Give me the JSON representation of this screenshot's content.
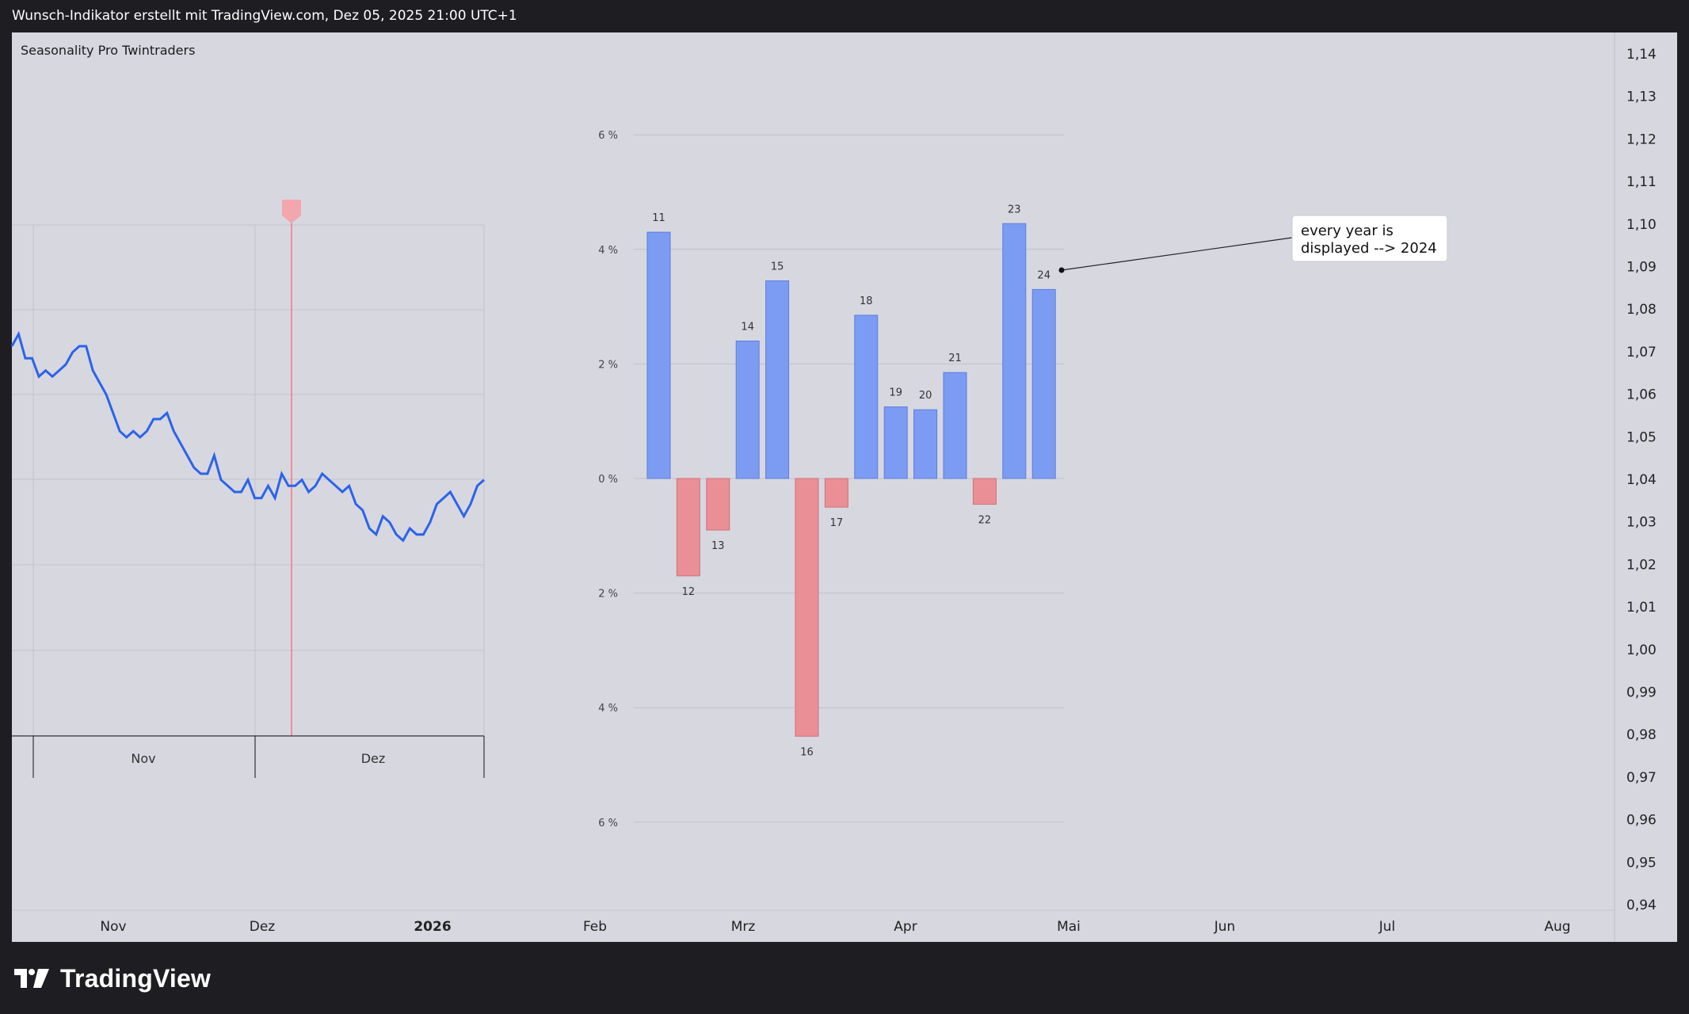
{
  "header": {
    "snapshot_text": "Wunsch-Indikator erstellt mit TradingView.com, Dez 05, 2025 21:00 UTC+1"
  },
  "indicator": {
    "title": "Seasonality Pro Twintraders"
  },
  "price_axis": {
    "labels": [
      "1,14",
      "1,13",
      "1,12",
      "1,11",
      "1,10",
      "1,09",
      "1,08",
      "1,07",
      "1,06",
      "1,05",
      "1,04",
      "1,03",
      "1,02",
      "1,01",
      "1,00",
      "0,99",
      "0,98",
      "0,97",
      "0,96",
      "0,95",
      "0,94"
    ]
  },
  "time_axis": {
    "labels": [
      "Nov",
      "Dez",
      "2026",
      "Feb",
      "Mrz",
      "Apr",
      "Mai",
      "Jun",
      "Jul",
      "Aug"
    ],
    "bold": "2026"
  },
  "colors": {
    "positive": "#7b9cf2",
    "negative": "#ea8f96",
    "line": "#2c63e8",
    "marker": "#f08080",
    "background": "#d7d7e0"
  },
  "chart_data": [
    {
      "type": "line",
      "description_months": [
        "Nov",
        "Dez"
      ],
      "values": [
        1.056,
        1.058,
        1.054,
        1.054,
        1.051,
        1.052,
        1.051,
        1.052,
        1.053,
        1.055,
        1.056,
        1.056,
        1.052,
        1.05,
        1.048,
        1.045,
        1.042,
        1.041,
        1.042,
        1.041,
        1.042,
        1.044,
        1.044,
        1.045,
        1.042,
        1.04,
        1.038,
        1.036,
        1.035,
        1.035,
        1.038,
        1.034,
        1.033,
        1.032,
        1.032,
        1.034,
        1.031,
        1.031,
        1.033,
        1.031,
        1.035,
        1.033,
        1.033,
        1.034,
        1.032,
        1.033,
        1.035,
        1.034,
        1.033,
        1.032,
        1.033,
        1.03,
        1.029,
        1.026,
        1.025,
        1.028,
        1.027,
        1.025,
        1.024,
        1.026,
        1.025,
        1.025,
        1.027,
        1.03,
        1.031,
        1.032,
        1.03,
        1.028,
        1.03,
        1.033,
        1.034
      ]
    },
    {
      "type": "bar",
      "categories": [
        "11",
        "12",
        "13",
        "14",
        "15",
        "16",
        "17",
        "18",
        "19",
        "20",
        "21",
        "22",
        "23",
        "24"
      ],
      "values": [
        4.3,
        -1.7,
        -0.9,
        2.4,
        3.45,
        -4.5,
        -0.5,
        2.85,
        1.25,
        1.2,
        1.85,
        -0.45,
        4.45,
        3.3
      ],
      "y_tick_labels": [
        "6 %",
        "4 %",
        "2 %",
        "0 %",
        "2 %",
        "4 %",
        "6 %"
      ],
      "ylim": [
        -6,
        6
      ]
    }
  ],
  "annotation": {
    "line1": "every year is",
    "line2": "displayed --> 2024"
  },
  "mini_chart": {
    "month_labels": [
      "Nov",
      "Dez"
    ]
  },
  "footer": {
    "brand": "TradingView"
  }
}
